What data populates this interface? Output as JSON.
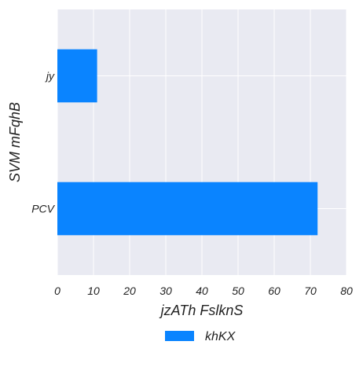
{
  "chart_data": {
    "type": "bar",
    "orientation": "horizontal",
    "title": "",
    "xlabel": "jzATh FslknS",
    "ylabel": "SVM mFqhB",
    "categories": [
      "jy",
      "PCV"
    ],
    "series": [
      {
        "name": "khKX",
        "values": [
          11,
          72
        ],
        "color": "#0a84ff"
      }
    ],
    "xlim": [
      0,
      80
    ],
    "xticks": [
      0,
      10,
      20,
      30,
      40,
      50,
      60,
      70,
      80
    ],
    "grid": true,
    "legend_position": "bottom-center",
    "colors": {
      "plot_background": "#e9eaf2",
      "grid": "#ffffff",
      "bar": "#0a84ff"
    }
  }
}
